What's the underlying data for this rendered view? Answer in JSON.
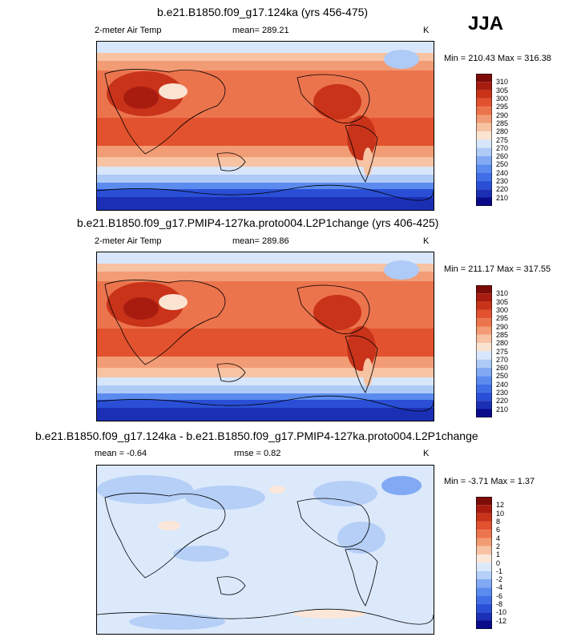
{
  "season": "JJA",
  "panels": [
    {
      "title": "b.e21.B1850.f09_g17.124ka (yrs 456-475)",
      "left_label": "2-meter Air Temp",
      "center_label": "mean= 289.21",
      "unit": "K",
      "minmax": "Min = 210.43 Max = 316.38",
      "colorbar_labels": [
        "310",
        "305",
        "300",
        "295",
        "290",
        "285",
        "280",
        "275",
        "270",
        "260",
        "250",
        "240",
        "230",
        "220",
        "210"
      ]
    },
    {
      "title": "b.e21.B1850.f09_g17.PMIP4-127ka.proto004.L2P1change (yrs 406-425)",
      "left_label": "2-meter Air Temp",
      "center_label": "mean= 289.86",
      "unit": "K",
      "minmax": "Min = 211.17 Max = 317.55",
      "colorbar_labels": [
        "310",
        "305",
        "300",
        "295",
        "290",
        "285",
        "280",
        "275",
        "270",
        "260",
        "250",
        "240",
        "230",
        "220",
        "210"
      ]
    },
    {
      "title": "b.e21.B1850.f09_g17.124ka - b.e21.B1850.f09_g17.PMIP4-127ka.proto004.L2P1change",
      "left_label": "mean =  -0.64",
      "center_label": "rmse =   0.82",
      "unit": "K",
      "minmax": "Min =  -3.71 Max =   1.37",
      "colorbar_labels": [
        "12",
        "10",
        "8",
        "6",
        "4",
        "2",
        "1",
        "0",
        "-1",
        "-2",
        "-4",
        "-6",
        "-8",
        "-10",
        "-12"
      ]
    }
  ],
  "chart_data": [
    {
      "type": "heatmap",
      "title": "b.e21.B1850.f09_g17.124ka (yrs 456-475)",
      "variable": "2-meter Air Temp",
      "units": "K",
      "mean": 289.21,
      "min": 210.43,
      "max": 316.38,
      "levels": [
        210,
        220,
        230,
        240,
        250,
        260,
        270,
        275,
        280,
        285,
        290,
        295,
        300,
        305,
        310
      ],
      "colors": [
        "#0a0a8a",
        "#1b2fb5",
        "#2a4fd6",
        "#3f6ee6",
        "#5b8bef",
        "#82a9f3",
        "#aecaf7",
        "#d8e6fb",
        "#fbe3d2",
        "#f7c3a3",
        "#f29c75",
        "#ec744d",
        "#e2522e",
        "#c8331a",
        "#a81c10",
        "#7d0c08"
      ]
    },
    {
      "type": "heatmap",
      "title": "b.e21.B1850.f09_g17.PMIP4-127ka.proto004.L2P1change (yrs 406-425)",
      "variable": "2-meter Air Temp",
      "units": "K",
      "mean": 289.86,
      "min": 211.17,
      "max": 317.55,
      "levels": [
        210,
        220,
        230,
        240,
        250,
        260,
        270,
        275,
        280,
        285,
        290,
        295,
        300,
        305,
        310
      ],
      "colors": [
        "#0a0a8a",
        "#1b2fb5",
        "#2a4fd6",
        "#3f6ee6",
        "#5b8bef",
        "#82a9f3",
        "#aecaf7",
        "#d8e6fb",
        "#fbe3d2",
        "#f7c3a3",
        "#f29c75",
        "#ec744d",
        "#e2522e",
        "#c8331a",
        "#a81c10",
        "#7d0c08"
      ]
    },
    {
      "type": "heatmap",
      "title": "b.e21.B1850.f09_g17.124ka - b.e21.B1850.f09_g17.PMIP4-127ka.proto004.L2P1change",
      "units": "K",
      "mean": -0.64,
      "rmse": 0.82,
      "min": -3.71,
      "max": 1.37,
      "levels": [
        -12,
        -10,
        -8,
        -6,
        -4,
        -2,
        -1,
        0,
        1,
        2,
        4,
        6,
        8,
        10,
        12
      ],
      "colors": [
        "#0a0a8a",
        "#1b2fb5",
        "#2a4fd6",
        "#3f6ee6",
        "#5b8bef",
        "#82a9f3",
        "#b5cff7",
        "#dce9fb",
        "#fbe7d9",
        "#f7c3a3",
        "#f29c75",
        "#ec744d",
        "#e2522e",
        "#c8331a",
        "#a81c10",
        "#7d0c08"
      ]
    }
  ]
}
